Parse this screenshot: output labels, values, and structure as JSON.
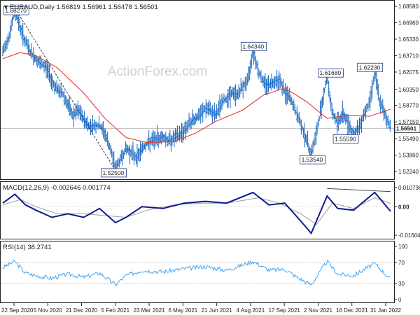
{
  "instrument_label": "EURAUD,Daily  1.56819 1.56961 1.56478 1.56501",
  "watermark": "ActionForex.com",
  "price_panel": {
    "y_ticks": [
      "1.68580",
      "1.66960",
      "1.65330",
      "1.63710",
      "1.62075",
      "1.60350",
      "1.58770",
      "1.57150",
      "1.55490",
      "1.53860",
      "1.52240"
    ],
    "last_price": "1.56501",
    "annotations": [
      "1.68270",
      "1.64340",
      "1.61680",
      "1.62230",
      "1.52500",
      "1.55590",
      "1.53540"
    ]
  },
  "macd_panel": {
    "label": "MACD(12,26,9) -0.002646 0.001774",
    "y_ticks": [
      "0.010736",
      "0.00",
      "-0.016046"
    ]
  },
  "rsi_panel": {
    "label": "RSI(14) 38.2741",
    "y_ticks": [
      "100",
      "70",
      "30",
      "0"
    ]
  },
  "x_axis": {
    "ticks": [
      "22 Sep 2020",
      "5 Nov 2020",
      "21 Dec 2020",
      "5 Feb 2021",
      "23 Mar 2021",
      "6 May 2021",
      "21 Jun 2021",
      "4 Aug 2021",
      "17 Sep 2021",
      "2 Nov 2021",
      "16 Dec 2021",
      "31 Jan 2022"
    ]
  },
  "colors": {
    "bars": "#1565c0",
    "ma": "#e53935",
    "macd": "#0d1b8c",
    "macd_signal": "#9e9e9e",
    "rsi": "#42a5f5",
    "trendline": "#333333",
    "annotation_border": "#1e3a8a"
  },
  "chart_data": [
    {
      "type": "ohlc",
      "title": "EURAUD,Daily  1.56819 1.56961 1.56478 1.56501",
      "ylim": [
        1.5224,
        1.6858
      ],
      "close_series": [
        [
          "2020-09-22",
          1.64
        ],
        [
          "2020-10-01",
          1.658
        ],
        [
          "2020-10-08",
          1.682
        ],
        [
          "2020-10-15",
          1.665
        ],
        [
          "2020-10-22",
          1.65
        ],
        [
          "2020-10-29",
          1.64
        ],
        [
          "2020-11-05",
          1.633
        ],
        [
          "2020-11-12",
          1.628
        ],
        [
          "2020-11-19",
          1.625
        ],
        [
          "2020-11-26",
          1.612
        ],
        [
          "2020-12-03",
          1.603
        ],
        [
          "2020-12-10",
          1.6
        ],
        [
          "2020-12-17",
          1.588
        ],
        [
          "2020-12-24",
          1.577
        ],
        [
          "2020-12-31",
          1.583
        ],
        [
          "2021-01-07",
          1.574
        ],
        [
          "2021-01-14",
          1.567
        ],
        [
          "2021-01-21",
          1.568
        ],
        [
          "2021-01-28",
          1.568
        ],
        [
          "2021-02-04",
          1.56
        ],
        [
          "2021-02-11",
          1.545
        ],
        [
          "2021-02-18",
          1.525
        ],
        [
          "2021-02-25",
          1.535
        ],
        [
          "2021-03-04",
          1.545
        ],
        [
          "2021-03-11",
          1.541
        ],
        [
          "2021-03-18",
          1.536
        ],
        [
          "2021-03-25",
          1.545
        ],
        [
          "2021-04-01",
          1.55
        ],
        [
          "2021-04-08",
          1.553
        ],
        [
          "2021-04-15",
          1.555
        ],
        [
          "2021-04-22",
          1.557
        ],
        [
          "2021-04-29",
          1.553
        ],
        [
          "2021-05-06",
          1.555
        ],
        [
          "2021-05-13",
          1.558
        ],
        [
          "2021-05-20",
          1.563
        ],
        [
          "2021-05-27",
          1.57
        ],
        [
          "2021-06-03",
          1.575
        ],
        [
          "2021-06-10",
          1.578
        ],
        [
          "2021-06-17",
          1.585
        ],
        [
          "2021-06-24",
          1.582
        ],
        [
          "2021-07-01",
          1.578
        ],
        [
          "2021-07-08",
          1.59
        ],
        [
          "2021-07-15",
          1.595
        ],
        [
          "2021-07-22",
          1.6
        ],
        [
          "2021-07-29",
          1.598
        ],
        [
          "2021-08-05",
          1.606
        ],
        [
          "2021-08-12",
          1.612
        ],
        [
          "2021-08-19",
          1.643
        ],
        [
          "2021-08-26",
          1.622
        ],
        [
          "2021-09-02",
          1.61
        ],
        [
          "2021-09-09",
          1.608
        ],
        [
          "2021-09-16",
          1.612
        ],
        [
          "2021-09-23",
          1.614
        ],
        [
          "2021-09-30",
          1.6
        ],
        [
          "2021-10-07",
          1.595
        ],
        [
          "2021-10-14",
          1.582
        ],
        [
          "2021-10-21",
          1.57
        ],
        [
          "2021-10-28",
          1.555
        ],
        [
          "2021-11-04",
          1.54
        ],
        [
          "2021-11-11",
          1.56
        ],
        [
          "2021-11-18",
          1.59
        ],
        [
          "2021-11-25",
          1.616
        ],
        [
          "2021-12-02",
          1.58
        ],
        [
          "2021-12-09",
          1.57
        ],
        [
          "2021-12-16",
          1.58
        ],
        [
          "2021-12-23",
          1.57
        ],
        [
          "2021-12-30",
          1.56
        ],
        [
          "2022-01-06",
          1.565
        ],
        [
          "2022-01-13",
          1.58
        ],
        [
          "2022-01-20",
          1.59
        ],
        [
          "2022-01-27",
          1.622
        ],
        [
          "2022-02-03",
          1.59
        ],
        [
          "2022-02-10",
          1.578
        ],
        [
          "2022-02-17",
          1.565
        ]
      ],
      "ma_series": [
        [
          "2020-09-22",
          1.634
        ],
        [
          "2020-10-15",
          1.64
        ],
        [
          "2020-11-05",
          1.637
        ],
        [
          "2020-12-03",
          1.625
        ],
        [
          "2021-01-07",
          1.6
        ],
        [
          "2021-02-04",
          1.575
        ],
        [
          "2021-03-04",
          1.556
        ],
        [
          "2021-04-01",
          1.551
        ],
        [
          "2021-05-06",
          1.552
        ],
        [
          "2021-06-03",
          1.56
        ],
        [
          "2021-07-01",
          1.572
        ],
        [
          "2021-08-05",
          1.583
        ],
        [
          "2021-09-02",
          1.598
        ],
        [
          "2021-09-30",
          1.605
        ],
        [
          "2021-10-28",
          1.592
        ],
        [
          "2021-11-25",
          1.575
        ],
        [
          "2021-12-23",
          1.578
        ],
        [
          "2022-01-20",
          1.577
        ],
        [
          "2022-02-17",
          1.584
        ]
      ]
    },
    {
      "type": "line",
      "title": "MACD(12,26,9) -0.002646 0.001774",
      "ylim": [
        -0.016046,
        0.010736
      ],
      "series": [
        {
          "name": "MACD",
          "values": [
            [
              "2020-09-22",
              0.002
            ],
            [
              "2020-10-08",
              0.007
            ],
            [
              "2020-10-22",
              0.001
            ],
            [
              "2020-11-05",
              -0.002
            ],
            [
              "2020-11-26",
              -0.006
            ],
            [
              "2020-12-17",
              -0.004
            ],
            [
              "2021-01-07",
              -0.006
            ],
            [
              "2021-01-28",
              -0.001
            ],
            [
              "2021-02-18",
              -0.009
            ],
            [
              "2021-03-04",
              -0.006
            ],
            [
              "2021-03-25",
              0.0
            ],
            [
              "2021-04-22",
              -0.001
            ],
            [
              "2021-05-20",
              0.002
            ],
            [
              "2021-06-17",
              0.003
            ],
            [
              "2021-07-15",
              0.002
            ],
            [
              "2021-08-19",
              0.008
            ],
            [
              "2021-09-09",
              0.001
            ],
            [
              "2021-09-30",
              0.002
            ],
            [
              "2021-10-21",
              -0.008
            ],
            [
              "2021-11-04",
              -0.015
            ],
            [
              "2021-11-25",
              0.006
            ],
            [
              "2021-12-09",
              -0.001
            ],
            [
              "2021-12-30",
              -0.002
            ],
            [
              "2022-01-27",
              0.008
            ],
            [
              "2022-02-17",
              -0.0026
            ]
          ]
        },
        {
          "name": "Signal",
          "values": [
            [
              "2020-09-22",
              0.001
            ],
            [
              "2020-10-15",
              0.004
            ],
            [
              "2020-11-05",
              0.0
            ],
            [
              "2020-12-03",
              -0.004
            ],
            [
              "2021-01-07",
              -0.004
            ],
            [
              "2021-02-04",
              -0.005
            ],
            [
              "2021-03-04",
              -0.006
            ],
            [
              "2021-04-01",
              -0.002
            ],
            [
              "2021-05-06",
              0.001
            ],
            [
              "2021-06-10",
              0.002
            ],
            [
              "2021-07-15",
              0.002
            ],
            [
              "2021-08-26",
              0.005
            ],
            [
              "2021-09-23",
              0.002
            ],
            [
              "2021-10-21",
              -0.004
            ],
            [
              "2021-11-11",
              -0.01
            ],
            [
              "2021-12-02",
              0.002
            ],
            [
              "2021-12-30",
              -0.001
            ],
            [
              "2022-01-27",
              0.005
            ],
            [
              "2022-02-17",
              0.0018
            ]
          ]
        }
      ]
    },
    {
      "type": "line",
      "title": "RSI(14) 38.2741",
      "ylim": [
        0,
        100
      ],
      "series": [
        {
          "name": "RSI",
          "values": [
            [
              "2020-09-22",
              60
            ],
            [
              "2020-10-08",
              72
            ],
            [
              "2020-10-22",
              50
            ],
            [
              "2020-11-05",
              45
            ],
            [
              "2020-11-26",
              40
            ],
            [
              "2020-12-17",
              48
            ],
            [
              "2021-01-07",
              42
            ],
            [
              "2021-01-28",
              50
            ],
            [
              "2021-02-18",
              28
            ],
            [
              "2021-03-04",
              45
            ],
            [
              "2021-03-25",
              55
            ],
            [
              "2021-04-22",
              52
            ],
            [
              "2021-05-20",
              58
            ],
            [
              "2021-06-17",
              62
            ],
            [
              "2021-07-15",
              55
            ],
            [
              "2021-08-19",
              72
            ],
            [
              "2021-09-09",
              55
            ],
            [
              "2021-09-30",
              57
            ],
            [
              "2021-10-21",
              38
            ],
            [
              "2021-11-04",
              28
            ],
            [
              "2021-11-25",
              72
            ],
            [
              "2021-12-09",
              48
            ],
            [
              "2021-12-30",
              45
            ],
            [
              "2022-01-27",
              68
            ],
            [
              "2022-02-17",
              38
            ]
          ]
        }
      ]
    }
  ]
}
